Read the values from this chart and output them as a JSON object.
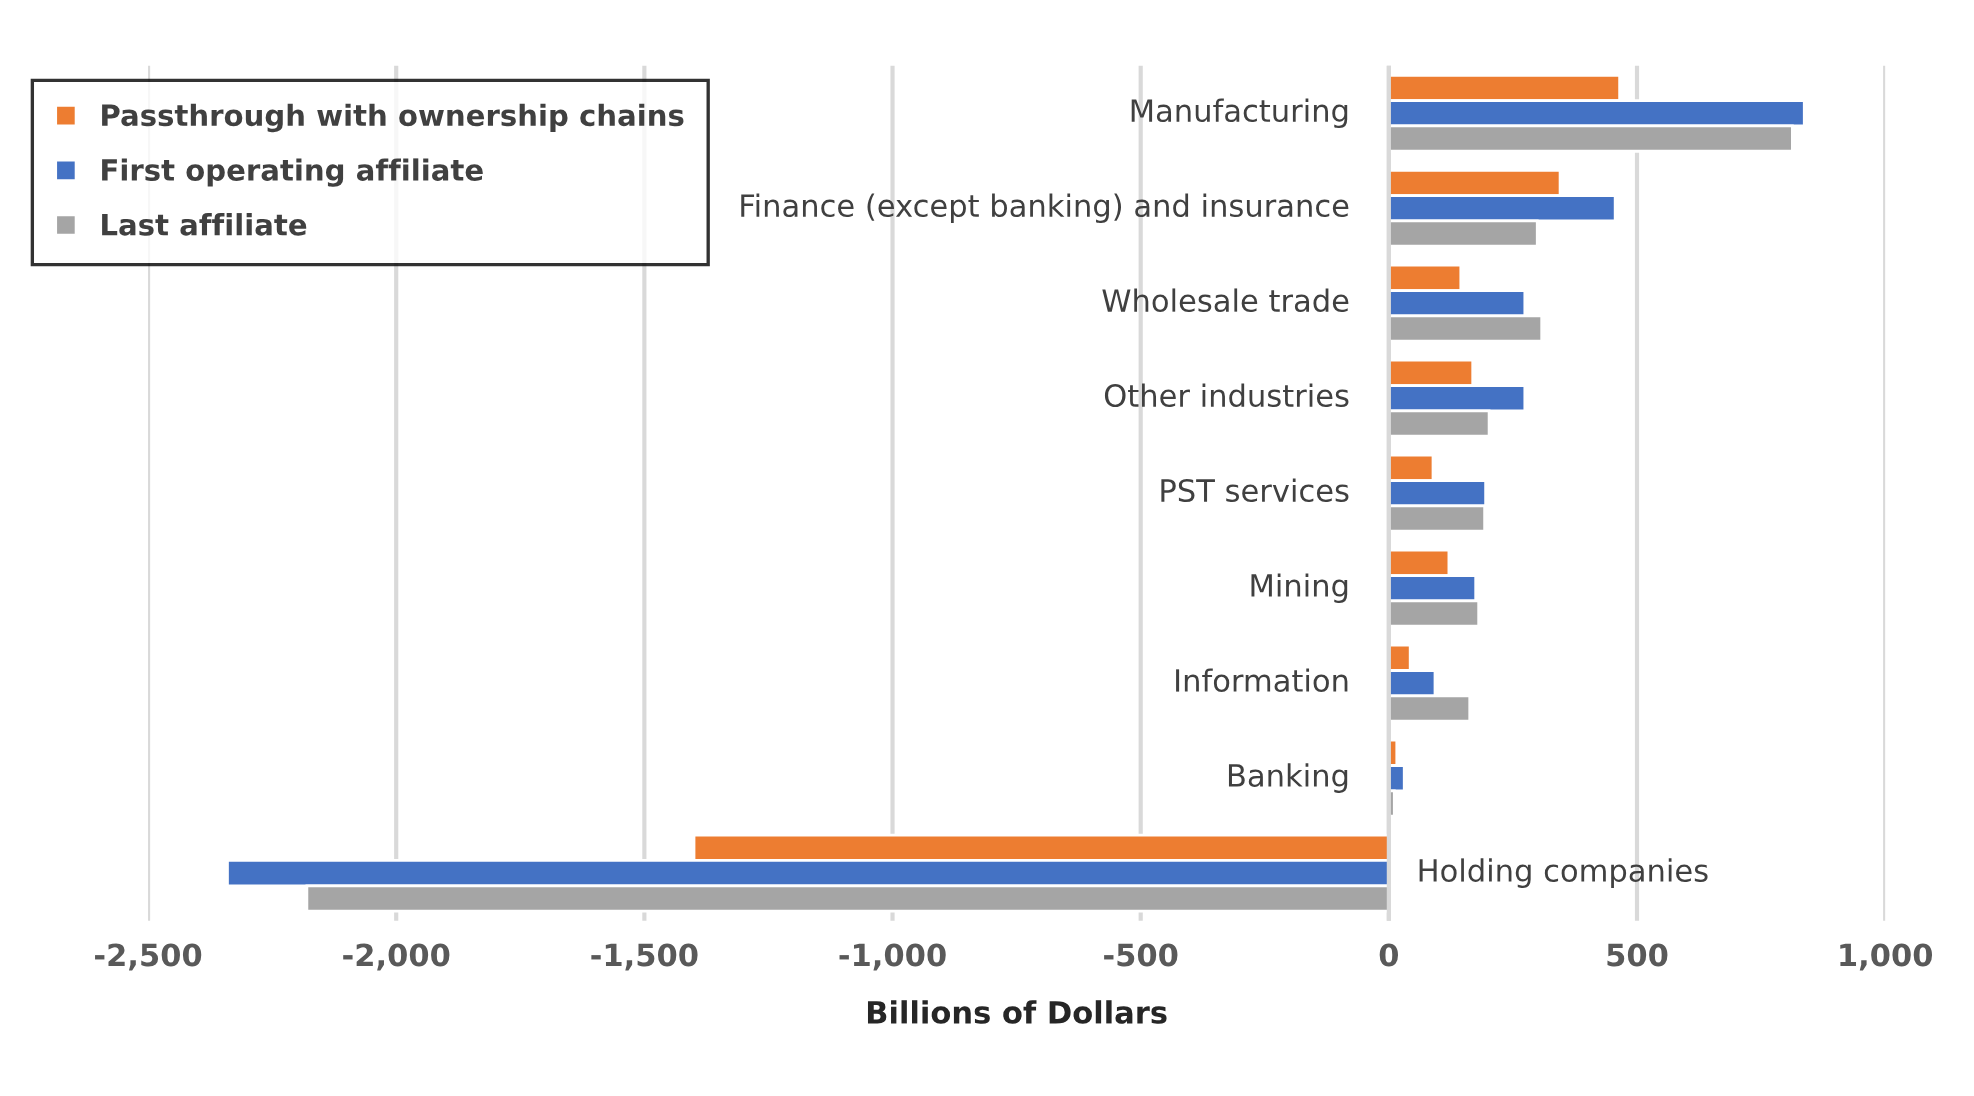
{
  "chart_data": {
    "type": "bar",
    "orientation": "horizontal",
    "xlabel": "Billions of Dollars",
    "categories": [
      "Manufacturing",
      "Finance (except banking) and insurance",
      "Wholesale trade",
      "Other industries",
      "PST services",
      "Mining",
      "Information",
      "Banking",
      "Holding companies"
    ],
    "series": [
      {
        "name": "Passthrough with ownership chains",
        "color": "#ed7d31",
        "values": [
          465,
          345,
          145,
          169,
          89,
          121,
          43,
          16,
          -1400
        ]
      },
      {
        "name": "First operating affiliate",
        "color": "#4472c4",
        "values": [
          837,
          456,
          274,
          274,
          195,
          175,
          93,
          31,
          -2340
        ]
      },
      {
        "name": "Last affiliate",
        "color": "#a5a5a5",
        "values": [
          813,
          299,
          308,
          202,
          193,
          181,
          163,
          11,
          -2180
        ]
      }
    ],
    "xlim": [
      -2500,
      1000
    ],
    "xticks": [
      {
        "value": -2500,
        "label": "-2,500"
      },
      {
        "value": -2000,
        "label": "-2,000"
      },
      {
        "value": -1500,
        "label": "-1,500"
      },
      {
        "value": -1000,
        "label": "-1,000"
      },
      {
        "value": -500,
        "label": "-500"
      },
      0,
      500,
      {
        "value": 1000,
        "label": "1,000"
      }
    ],
    "grid": "x",
    "legend": "top left"
  }
}
